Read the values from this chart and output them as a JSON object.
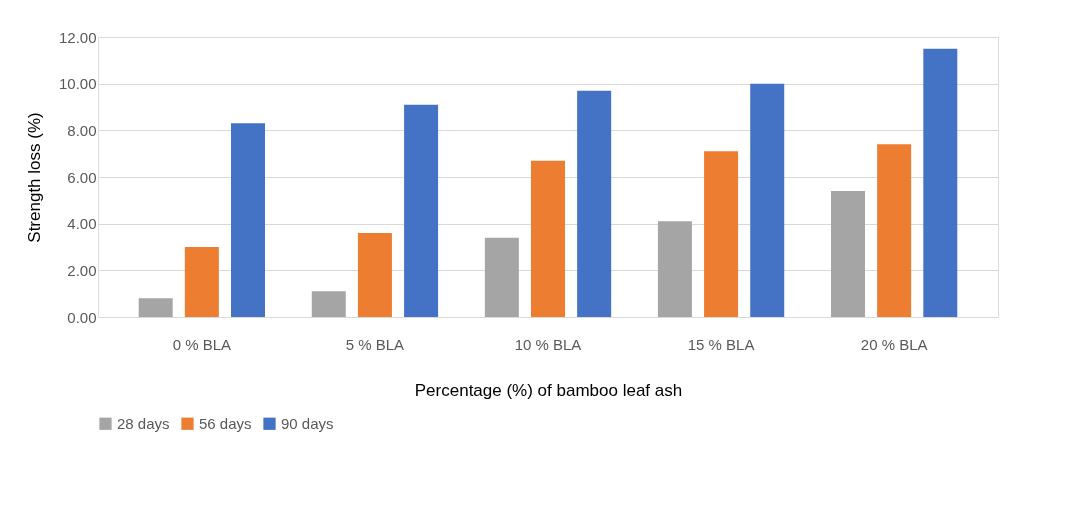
{
  "chart_data": {
    "type": "bar",
    "xlabel": "Percentage (%) of bamboo leaf ash",
    "ylabel": "Strength loss (%)",
    "categories": [
      "0 % BLA",
      "5 % BLA",
      "10 % BLA",
      "15 % BLA",
      "20 % BLA"
    ],
    "series": [
      {
        "name": "28 days",
        "color": "#a5a5a5",
        "values": [
          0.8,
          1.1,
          3.4,
          4.1,
          5.4
        ]
      },
      {
        "name": "56 days",
        "color": "#ed7d31",
        "values": [
          3.0,
          3.6,
          6.7,
          7.1,
          7.4
        ]
      },
      {
        "name": "90 days",
        "color": "#4472c4",
        "values": [
          8.3,
          9.1,
          9.7,
          10.0,
          11.5
        ]
      }
    ],
    "ylim": [
      0,
      12
    ],
    "yticks": [
      {
        "value": 0,
        "label": "0.00"
      },
      {
        "value": 2,
        "label": "2.00"
      },
      {
        "value": 4,
        "label": "4.00"
      },
      {
        "value": 6,
        "label": "6.00"
      },
      {
        "value": 8,
        "label": "8.00"
      },
      {
        "value": 10,
        "label": "10.00"
      },
      {
        "value": 12,
        "label": "12.00"
      }
    ],
    "grid": "y",
    "legend": "bottom"
  }
}
